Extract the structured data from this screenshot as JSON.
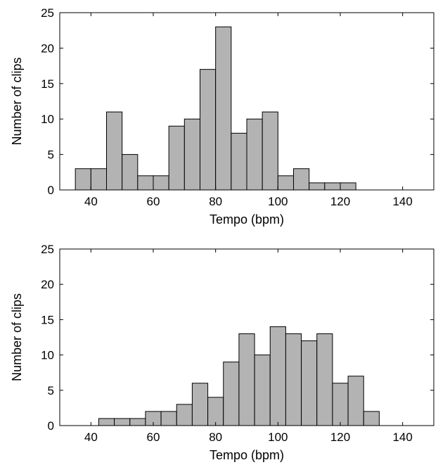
{
  "chart_data": [
    {
      "type": "bar",
      "xlabel": "Tempo (bpm)",
      "ylabel": "Number of clips",
      "xlim": [
        30,
        150
      ],
      "ylim": [
        0,
        25
      ],
      "xticks": [
        40,
        60,
        80,
        100,
        120,
        140
      ],
      "yticks": [
        0,
        5,
        10,
        15,
        20,
        25
      ],
      "bin_width": 5,
      "bin_centers": [
        37.5,
        42.5,
        47.5,
        52.5,
        57.5,
        62.5,
        67.5,
        72.5,
        77.5,
        82.5,
        87.5,
        92.5,
        97.5,
        102.5,
        107.5,
        112.5,
        117.5,
        122.5
      ],
      "values": [
        3,
        3,
        11,
        5,
        2,
        2,
        9,
        10,
        17,
        23,
        8,
        10,
        11,
        2,
        3,
        1,
        1,
        1
      ],
      "bar_color": "#b3b3b3",
      "grid": false
    },
    {
      "type": "bar",
      "xlabel": "Tempo (bpm)",
      "ylabel": "Number of clips",
      "xlim": [
        30,
        150
      ],
      "ylim": [
        0,
        25
      ],
      "xticks": [
        40,
        60,
        80,
        100,
        120,
        140
      ],
      "yticks": [
        0,
        5,
        10,
        15,
        20,
        25
      ],
      "bin_width": 5,
      "bin_centers": [
        45,
        50,
        55,
        60,
        65,
        70,
        75,
        80,
        85,
        90,
        95,
        100,
        105,
        110,
        115,
        120,
        125,
        130
      ],
      "values": [
        1,
        1,
        1,
        2,
        2,
        3,
        6,
        4,
        9,
        13,
        10,
        14,
        13,
        12,
        13,
        6,
        7,
        2
      ],
      "bar_color": "#b3b3b3",
      "grid": false
    }
  ]
}
